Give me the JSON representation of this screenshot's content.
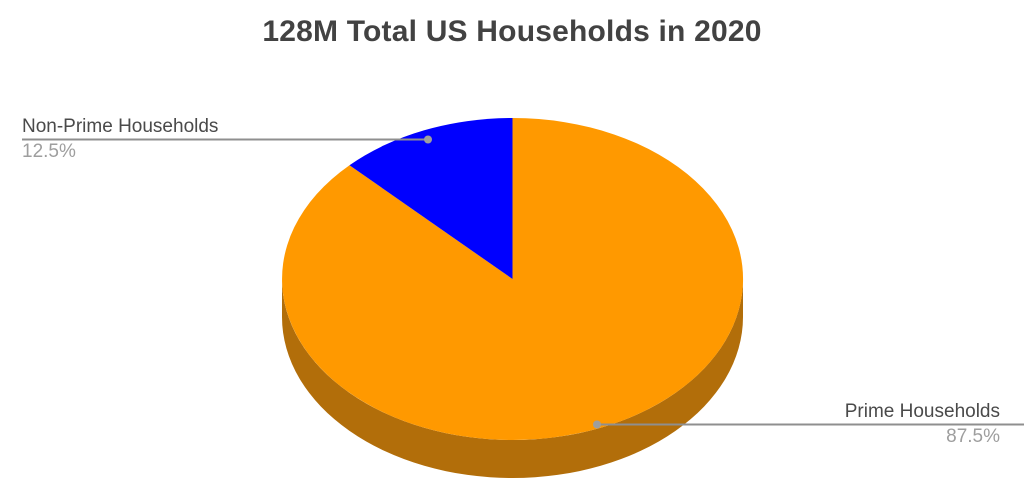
{
  "title": "128M Total US Households in 2020",
  "chart_data": {
    "type": "pie",
    "is_3d": true,
    "title": "128M Total US Households in 2020",
    "start_angle_deg": 0,
    "direction": "clockwise",
    "legend_position": "labeled-callouts",
    "background": "#ffffff",
    "side_color": "#b26e0a",
    "slices": [
      {
        "label": "Prime Households",
        "pct": 87.5,
        "pct_label": "87.5%",
        "color": "#ff9900"
      },
      {
        "label": "Non-Prime Households",
        "pct": 12.5,
        "pct_label": "12.5%",
        "color": "#0000ff"
      }
    ]
  },
  "styles": {
    "title_color": "#424242",
    "label_color": "#4a4a4a",
    "pct_color": "#9e9e9e",
    "callout_line_color": "#8f8f8f",
    "callout_dot_color": "#9e9e9e"
  }
}
